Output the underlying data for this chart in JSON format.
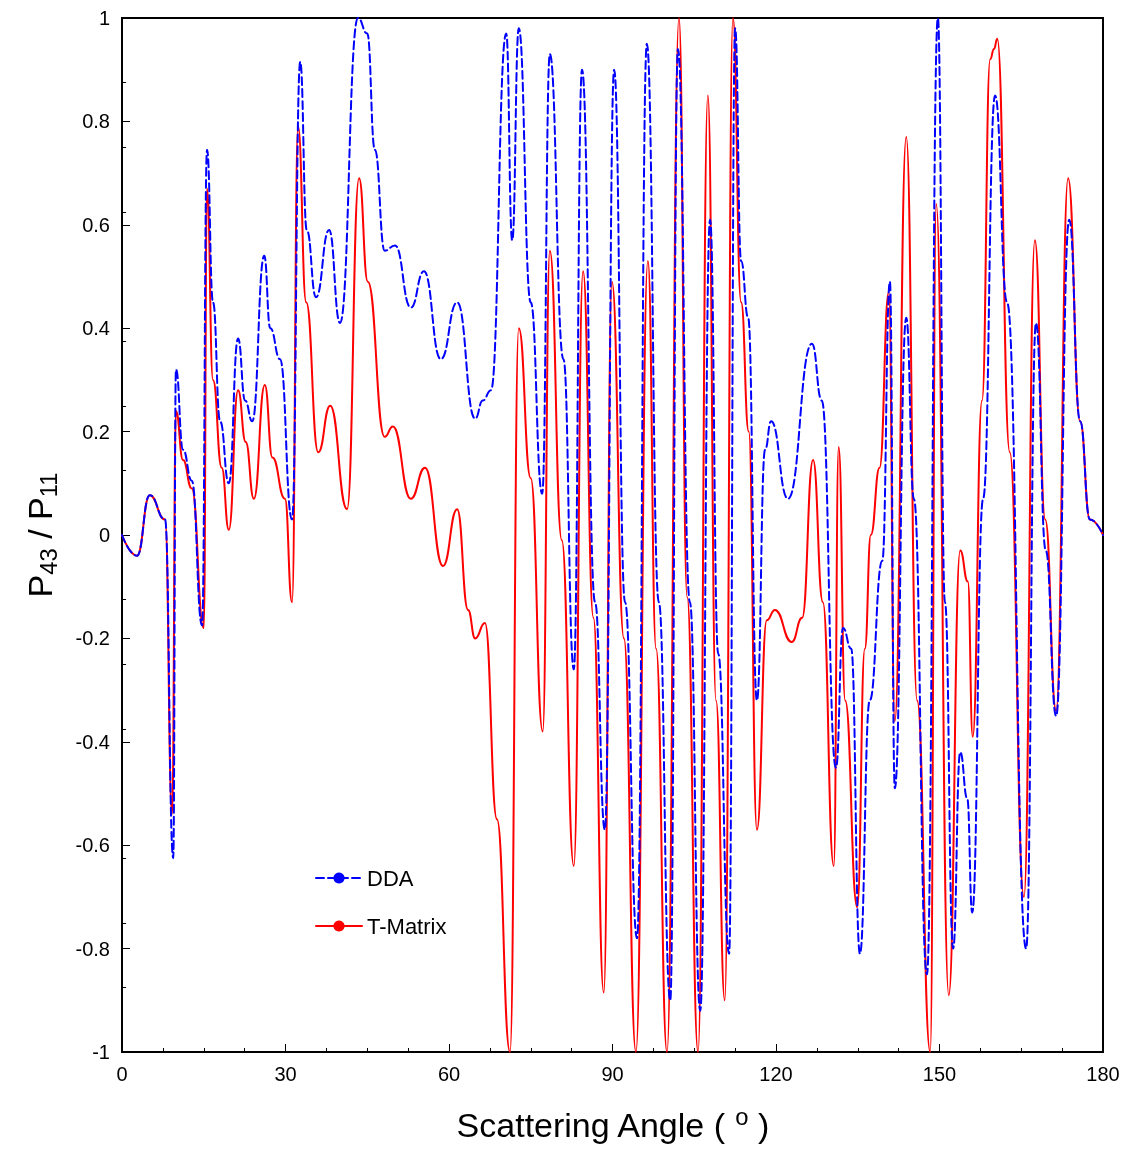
{
  "chart_data": {
    "type": "line",
    "xlabel": "Scattering Angle ( $^{o}$ )",
    "ylabel": "P$_{43}$ / P$_{11}$",
    "xlim": [
      0,
      180
    ],
    "xticks": [
      0,
      30,
      60,
      90,
      120,
      150,
      180
    ],
    "ylim": [
      -1,
      1
    ],
    "yticks": [
      -1,
      -0.8,
      -0.6,
      -0.4,
      -0.2,
      0,
      0.2,
      0.4,
      0.6,
      0.8,
      1
    ],
    "grid": false,
    "legend": "bottom left",
    "marker": "none",
    "series": [
      {
        "name": "DDA",
        "color": "#0000ff",
        "line_style": "dashed",
        "x": [
          0,
          2.75,
          5.1,
          7.9,
          9.4,
          9.9,
          11.2,
          12.8,
          14.7,
          15.6,
          16.7,
          18,
          19.6,
          21.3,
          22.6,
          23.9,
          26.1,
          27.2,
          29,
          31.2,
          32.7,
          33.9,
          35.6,
          38,
          40,
          43.3,
          45,
          46.4,
          48.2,
          50.1,
          53,
          55.4,
          58.5,
          61.5,
          64.8,
          66.2,
          67.7,
          70.5,
          71.6,
          72.8,
          75,
          77.1,
          78.5,
          81,
          82.9,
          84.4,
          86.8,
          88.6,
          90.3,
          92.3,
          94.5,
          96.3,
          98.5,
          100.6,
          102,
          104.2,
          106.1,
          107.9,
          109.4,
          111.4,
          112.5,
          113.6,
          114.9,
          116.5,
          118,
          119.1,
          122.2,
          126.6,
          128.4,
          131,
          132.3,
          133.8,
          135.4,
          137.2,
          139.5,
          140.9,
          141.8,
          143.9,
          145.3,
          147.7,
          149.7,
          151,
          152.5,
          153.8,
          155.1,
          156,
          158,
          160.2,
          162.4,
          165.9,
          167.7,
          169.5,
          171.4,
          173.8,
          175.8,
          177.6,
          180
        ],
        "values": [
          0,
          -0.04,
          0.077,
          0.03,
          -0.625,
          0.32,
          0.165,
          0.105,
          -0.175,
          0.745,
          0.45,
          0.22,
          0.1,
          0.38,
          0.26,
          0.22,
          0.54,
          0.4,
          0.34,
          0.03,
          0.915,
          0.59,
          0.46,
          0.59,
          0.41,
          1,
          0.97,
          0.745,
          0.55,
          0.56,
          0.44,
          0.51,
          0.34,
          0.45,
          0.225,
          0.26,
          0.28,
          0.97,
          0.57,
          0.98,
          0.45,
          0.08,
          0.93,
          0.34,
          -0.26,
          0.9,
          -0.13,
          -0.57,
          0.9,
          -0.13,
          -0.78,
          0.95,
          -0.13,
          -0.9,
          0.94,
          -0.13,
          -0.92,
          0.61,
          -0.23,
          -0.81,
          0.98,
          0.53,
          0.42,
          -0.32,
          0.165,
          0.22,
          0.07,
          0.37,
          0.26,
          -0.45,
          -0.18,
          -0.22,
          -0.81,
          -0.32,
          -0.05,
          0.49,
          -0.49,
          0.42,
          0.07,
          -0.85,
          1,
          -0.13,
          -0.8,
          -0.42,
          -0.51,
          -0.73,
          0.07,
          0.85,
          0.45,
          -0.8,
          0.41,
          -0.03,
          -0.35,
          0.61,
          0.22,
          0.03,
          0
        ]
      },
      {
        "name": "T-Matrix",
        "color": "#ff0000",
        "line_style": "solid",
        "x": [
          0,
          2.75,
          5.1,
          7.9,
          9.2,
          9.9,
          11.2,
          12.8,
          15,
          15.6,
          16.7,
          18.3,
          19.6,
          21.3,
          22.7,
          24.2,
          26.2,
          27.6,
          29.9,
          31.2,
          32.3,
          33.8,
          36,
          38.2,
          41.3,
          43.5,
          45.1,
          48.2,
          49.7,
          53,
          55.6,
          58.9,
          61.5,
          63.5,
          64.8,
          66.6,
          68.8,
          71.2,
          72.8,
          75,
          77.2,
          78.5,
          80.7,
          82.9,
          84.6,
          86.5,
          88.4,
          89.9,
          92.1,
          94.3,
          96.5,
          98,
          100,
          102.2,
          103.7,
          105.7,
          107.5,
          109,
          110.6,
          112.1,
          113.6,
          115,
          116.5,
          118.3,
          119.8,
          122.9,
          124.8,
          126.8,
          128.6,
          130.6,
          131.5,
          132.7,
          134.9,
          136.3,
          137.4,
          139,
          140.7,
          141.8,
          143.9,
          145.9,
          148.3,
          149.4,
          151.7,
          153.8,
          155.2,
          156.1,
          157.8,
          159.3,
          160,
          160.6,
          162.9,
          165.5,
          167.5,
          169.4,
          171.4,
          173.6,
          175.8,
          177.6,
          180
        ],
        "values": [
          0,
          -0.04,
          0.077,
          0.03,
          -0.54,
          0.24,
          0.145,
          0.09,
          -0.18,
          0.67,
          0.3,
          0.13,
          0.01,
          0.28,
          0.18,
          0.07,
          0.29,
          0.15,
          0.07,
          -0.13,
          0.79,
          0.45,
          0.16,
          0.25,
          0.05,
          0.69,
          0.49,
          0.19,
          0.21,
          0.07,
          0.13,
          -0.06,
          0.05,
          -0.145,
          -0.2,
          -0.17,
          -0.55,
          -1,
          0.4,
          0.11,
          -0.38,
          0.55,
          -0.01,
          -0.64,
          0.51,
          -0.16,
          -0.885,
          0.49,
          -0.2,
          -1,
          0.53,
          -0.22,
          -1,
          1,
          -0.12,
          -1,
          0.85,
          -0.32,
          -0.9,
          1,
          0.45,
          0.2,
          -0.57,
          -0.165,
          -0.145,
          -0.207,
          -0.16,
          0.145,
          -0.13,
          -0.64,
          0.17,
          -0.32,
          -0.72,
          -0.22,
          0,
          0.13,
          0.47,
          -0.36,
          0.77,
          -0.32,
          -1,
          0.64,
          -0.89,
          -0.03,
          -0.09,
          -0.39,
          0.26,
          0.92,
          0.94,
          0.96,
          0.16,
          -0.7,
          0.57,
          0.03,
          -0.34,
          0.69,
          0.22,
          0.03,
          0
        ]
      }
    ]
  }
}
